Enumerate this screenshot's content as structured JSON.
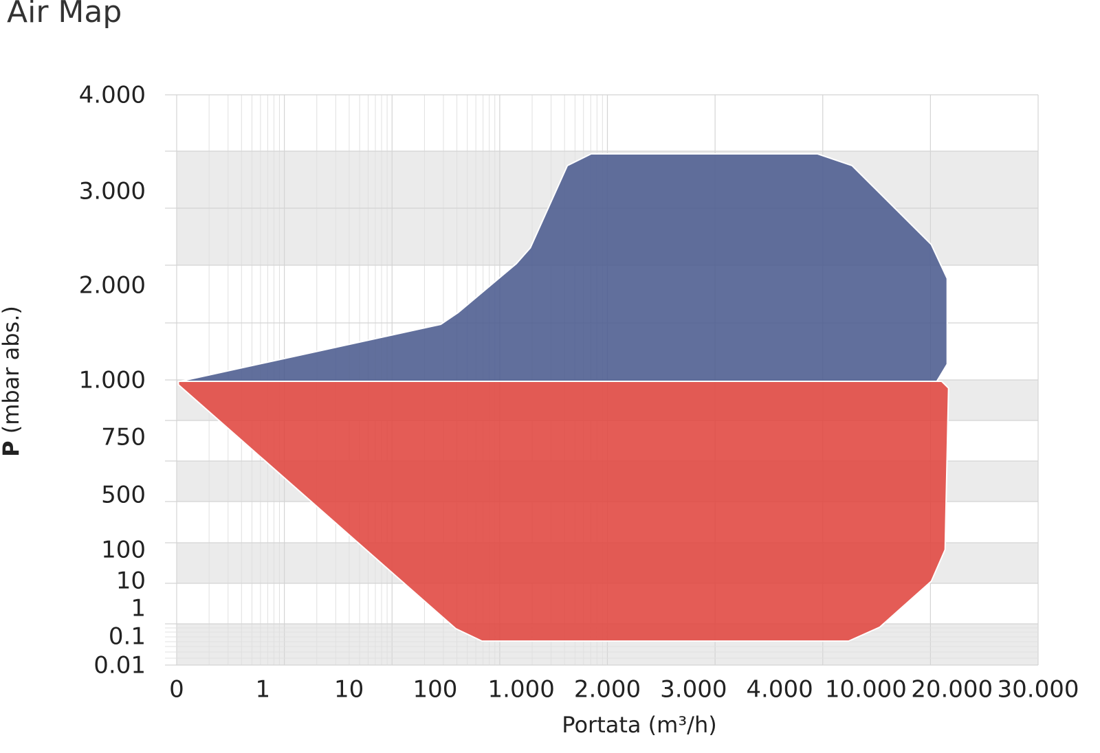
{
  "chart_data": {
    "type": "area",
    "title": "Air Map",
    "xlabel": "Portata (m³/h)",
    "ylabel_symbol": "P",
    "ylabel_unit": "(mbar abs.)",
    "xticks": [
      0,
      1,
      10,
      100,
      {
        "value": 1000,
        "label": "1.000"
      },
      {
        "value": 2000,
        "label": "2.000"
      },
      {
        "value": 3000,
        "label": "3.000"
      },
      {
        "value": 4000,
        "label": "4.000"
      },
      {
        "value": 10000,
        "label": "10.000"
      },
      {
        "value": 20000,
        "label": "20.000"
      },
      {
        "value": 30000,
        "label": "30.000"
      }
    ],
    "xlim": [
      0,
      30000
    ],
    "yticks": [
      {
        "value": 4000,
        "label": "4.000"
      },
      {
        "value": 3000,
        "label": "3.000"
      },
      {
        "value": 2000,
        "label": "2.000"
      },
      {
        "value": 1000,
        "label": "1.000"
      },
      750,
      500,
      100,
      10,
      1,
      0.1,
      0.01
    ],
    "ylim": [
      0.01,
      4000
    ],
    "series": [
      {
        "color": "#4b5b8e",
        "x": [
          0.04,
          158,
          338,
          950,
          1105,
          1535,
          1811,
          6640,
          9040,
          17600,
          19440,
          19440,
          18240
        ],
        "values": [
          1000,
          1600,
          1723,
          2244,
          2410,
          3278,
          3400,
          3400,
          3278,
          2446,
          2085,
          1181,
          1000
        ]
      },
      {
        "color": "#e0463f",
        "x": [
          0.02,
          18800,
          19600,
          19200,
          17600,
          11600,
          8800,
          590,
          316,
          0.02
        ],
        "values": [
          1000,
          1000,
          970,
          110,
          12,
          0.43,
          0.089,
          0.089,
          0.385,
          985
        ]
      }
    ]
  }
}
